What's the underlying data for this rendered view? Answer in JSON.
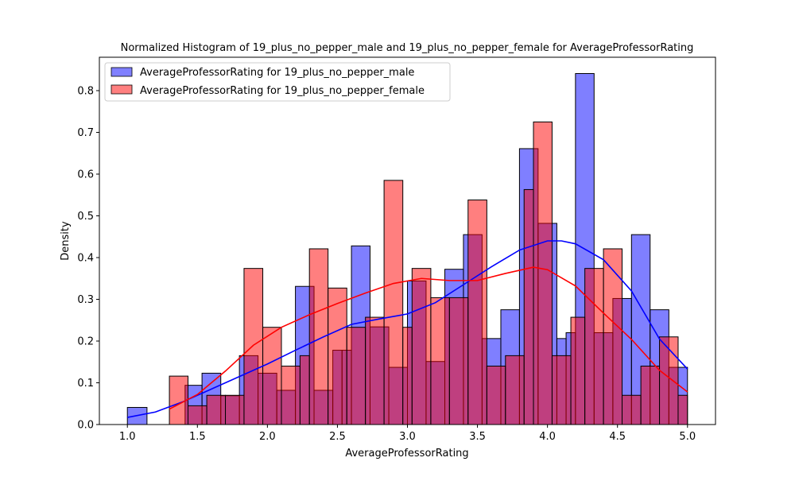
{
  "chart_data": {
    "type": "bar",
    "title": "Normalized Histogram of 19_plus_no_pepper_male and 19_plus_no_pepper_female for AverageProfessorRating",
    "xlabel": "AverageProfessorRating",
    "ylabel": "Density",
    "xlim": [
      0.8,
      5.2
    ],
    "ylim": [
      0,
      0.88
    ],
    "xticks": [
      "1.0",
      "1.5",
      "2.0",
      "2.5",
      "3.0",
      "3.5",
      "4.0",
      "4.5",
      "5.0"
    ],
    "yticks": [
      "0.0",
      "0.1",
      "0.2",
      "0.3",
      "0.4",
      "0.5",
      "0.6",
      "0.7",
      "0.8"
    ],
    "legend_position": "upper-left",
    "series": [
      {
        "name": "AverageProfessorRating for 19_plus_no_pepper_male",
        "color": "#0000ff",
        "bins": [
          {
            "x0": 1.0,
            "x1": 1.14,
            "y": 0.041
          },
          {
            "x0": 1.412,
            "x1": 1.533,
            "y": 0.094
          },
          {
            "x0": 1.533,
            "x1": 1.667,
            "y": 0.123
          },
          {
            "x0": 1.667,
            "x1": 1.8,
            "y": 0.069
          },
          {
            "x0": 1.8,
            "x1": 1.933,
            "y": 0.165
          },
          {
            "x0": 1.933,
            "x1": 2.067,
            "y": 0.123
          },
          {
            "x0": 2.067,
            "x1": 2.2,
            "y": 0.082
          },
          {
            "x0": 2.2,
            "x1": 2.333,
            "y": 0.331
          },
          {
            "x0": 2.333,
            "x1": 2.467,
            "y": 0.082
          },
          {
            "x0": 2.467,
            "x1": 2.533,
            "y": 0.178
          },
          {
            "x0": 2.533,
            "x1": 2.6,
            "y": 0.178
          },
          {
            "x0": 2.6,
            "x1": 2.733,
            "y": 0.428
          },
          {
            "x0": 2.733,
            "x1": 2.867,
            "y": 0.234
          },
          {
            "x0": 2.867,
            "x1": 3.0,
            "y": 0.137
          },
          {
            "x0": 3.0,
            "x1": 3.133,
            "y": 0.344
          },
          {
            "x0": 3.133,
            "x1": 3.267,
            "y": 0.151
          },
          {
            "x0": 3.267,
            "x1": 3.4,
            "y": 0.372
          },
          {
            "x0": 3.4,
            "x1": 3.533,
            "y": 0.455
          },
          {
            "x0": 3.533,
            "x1": 3.667,
            "y": 0.206
          },
          {
            "x0": 3.667,
            "x1": 3.8,
            "y": 0.275
          },
          {
            "x0": 3.8,
            "x1": 3.933,
            "y": 0.661
          },
          {
            "x0": 3.933,
            "x1": 4.067,
            "y": 0.482
          },
          {
            "x0": 4.067,
            "x1": 4.133,
            "y": 0.206
          },
          {
            "x0": 4.133,
            "x1": 4.2,
            "y": 0.22
          },
          {
            "x0": 4.2,
            "x1": 4.333,
            "y": 0.841
          },
          {
            "x0": 4.333,
            "x1": 4.467,
            "y": 0.22
          },
          {
            "x0": 4.467,
            "x1": 4.6,
            "y": 0.302
          },
          {
            "x0": 4.6,
            "x1": 4.733,
            "y": 0.455
          },
          {
            "x0": 4.733,
            "x1": 4.867,
            "y": 0.275
          },
          {
            "x0": 4.867,
            "x1": 5.0,
            "y": 0.137
          }
        ],
        "kde": [
          {
            "x": 1.0,
            "y": 0.017
          },
          {
            "x": 1.2,
            "y": 0.03
          },
          {
            "x": 1.4,
            "y": 0.055
          },
          {
            "x": 1.6,
            "y": 0.085
          },
          {
            "x": 1.8,
            "y": 0.115
          },
          {
            "x": 2.0,
            "y": 0.145
          },
          {
            "x": 2.2,
            "y": 0.178
          },
          {
            "x": 2.4,
            "y": 0.21
          },
          {
            "x": 2.6,
            "y": 0.24
          },
          {
            "x": 2.8,
            "y": 0.253
          },
          {
            "x": 3.0,
            "y": 0.265
          },
          {
            "x": 3.2,
            "y": 0.292
          },
          {
            "x": 3.4,
            "y": 0.335
          },
          {
            "x": 3.6,
            "y": 0.378
          },
          {
            "x": 3.8,
            "y": 0.418
          },
          {
            "x": 4.0,
            "y": 0.44
          },
          {
            "x": 4.1,
            "y": 0.44
          },
          {
            "x": 4.2,
            "y": 0.433
          },
          {
            "x": 4.4,
            "y": 0.395
          },
          {
            "x": 4.6,
            "y": 0.32
          },
          {
            "x": 4.8,
            "y": 0.205
          },
          {
            "x": 5.0,
            "y": 0.133
          }
        ]
      },
      {
        "name": "AverageProfessorRating for 19_plus_no_pepper_female",
        "color": "#ff0000",
        "bins": [
          {
            "x0": 1.3,
            "x1": 1.433,
            "y": 0.116
          },
          {
            "x0": 1.433,
            "x1": 1.567,
            "y": 0.045
          },
          {
            "x0": 1.567,
            "x1": 1.7,
            "y": 0.07
          },
          {
            "x0": 1.7,
            "x1": 1.833,
            "y": 0.07
          },
          {
            "x0": 1.833,
            "x1": 1.967,
            "y": 0.374
          },
          {
            "x0": 1.967,
            "x1": 2.1,
            "y": 0.233
          },
          {
            "x0": 2.1,
            "x1": 2.233,
            "y": 0.14
          },
          {
            "x0": 2.233,
            "x1": 2.3,
            "y": 0.165
          },
          {
            "x0": 2.3,
            "x1": 2.433,
            "y": 0.421
          },
          {
            "x0": 2.433,
            "x1": 2.567,
            "y": 0.327
          },
          {
            "x0": 2.567,
            "x1": 2.7,
            "y": 0.233
          },
          {
            "x0": 2.7,
            "x1": 2.833,
            "y": 0.257
          },
          {
            "x0": 2.833,
            "x1": 2.967,
            "y": 0.585
          },
          {
            "x0": 2.967,
            "x1": 3.033,
            "y": 0.233
          },
          {
            "x0": 3.033,
            "x1": 3.167,
            "y": 0.374
          },
          {
            "x0": 3.167,
            "x1": 3.3,
            "y": 0.304
          },
          {
            "x0": 3.3,
            "x1": 3.433,
            "y": 0.304
          },
          {
            "x0": 3.433,
            "x1": 3.567,
            "y": 0.538
          },
          {
            "x0": 3.567,
            "x1": 3.7,
            "y": 0.14
          },
          {
            "x0": 3.7,
            "x1": 3.833,
            "y": 0.165
          },
          {
            "x0": 3.833,
            "x1": 3.9,
            "y": 0.563
          },
          {
            "x0": 3.9,
            "x1": 4.033,
            "y": 0.725
          },
          {
            "x0": 4.033,
            "x1": 4.167,
            "y": 0.165
          },
          {
            "x0": 4.167,
            "x1": 4.267,
            "y": 0.257
          },
          {
            "x0": 4.267,
            "x1": 4.4,
            "y": 0.374
          },
          {
            "x0": 4.4,
            "x1": 4.533,
            "y": 0.421
          },
          {
            "x0": 4.533,
            "x1": 4.667,
            "y": 0.07
          },
          {
            "x0": 4.667,
            "x1": 4.8,
            "y": 0.14
          },
          {
            "x0": 4.8,
            "x1": 4.933,
            "y": 0.21
          },
          {
            "x0": 4.933,
            "x1": 5.0,
            "y": 0.07
          }
        ],
        "kde": [
          {
            "x": 1.3,
            "y": 0.037
          },
          {
            "x": 1.5,
            "y": 0.072
          },
          {
            "x": 1.7,
            "y": 0.128
          },
          {
            "x": 1.9,
            "y": 0.19
          },
          {
            "x": 2.1,
            "y": 0.233
          },
          {
            "x": 2.3,
            "y": 0.263
          },
          {
            "x": 2.5,
            "y": 0.29
          },
          {
            "x": 2.7,
            "y": 0.315
          },
          {
            "x": 2.9,
            "y": 0.338
          },
          {
            "x": 3.1,
            "y": 0.35
          },
          {
            "x": 3.3,
            "y": 0.345
          },
          {
            "x": 3.5,
            "y": 0.345
          },
          {
            "x": 3.7,
            "y": 0.362
          },
          {
            "x": 3.9,
            "y": 0.377
          },
          {
            "x": 4.0,
            "y": 0.371
          },
          {
            "x": 4.2,
            "y": 0.332
          },
          {
            "x": 4.4,
            "y": 0.267
          },
          {
            "x": 4.6,
            "y": 0.204
          },
          {
            "x": 4.8,
            "y": 0.13
          },
          {
            "x": 5.0,
            "y": 0.078
          }
        ]
      }
    ]
  }
}
